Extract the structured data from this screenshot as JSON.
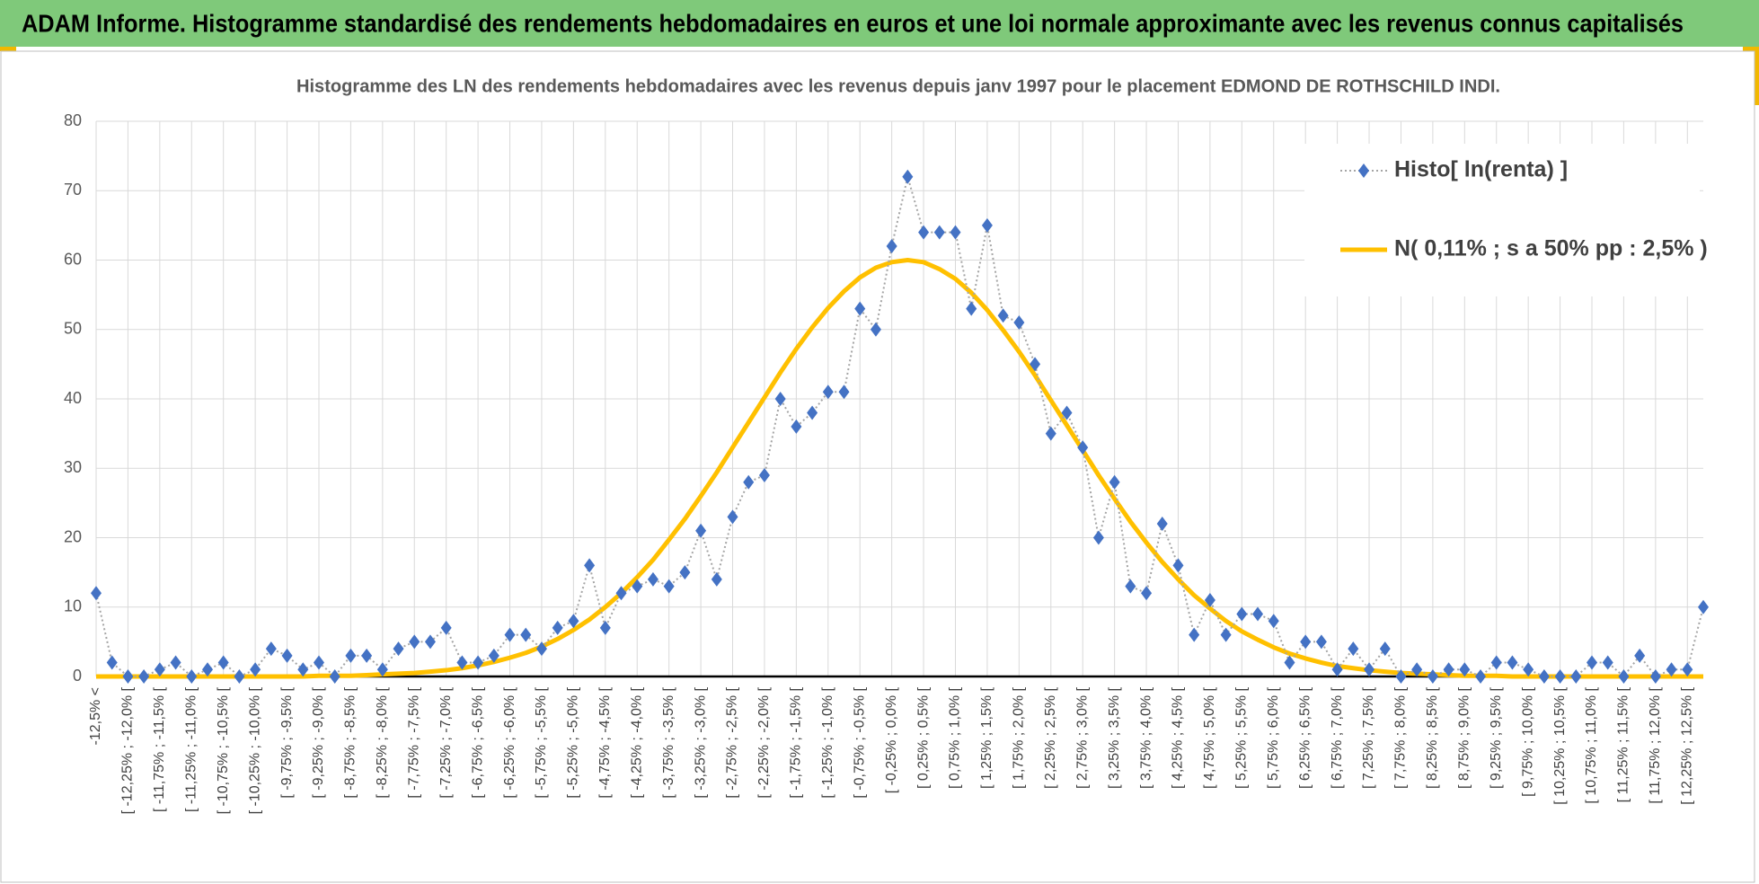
{
  "chart_data": {
    "type": "line",
    "header": "ADAM Informe. Histogramme standardisé des rendements hebdomadaires en euros et une loi normale approximante avec les revenus connus capitalisés",
    "title": "Histogramme des LN des rendements hebdomadaires avec les revenus depuis janv 1997 pour le placement EDMOND DE ROTHSCHILD INDI.",
    "categories": [
      "-12,5% <",
      null,
      "[ -12,25% ; -12,0% [",
      null,
      "[ -11,75% ; -11,5% [",
      null,
      "[ -11,25% ; -11,0% [",
      null,
      "[ -10,75% ; -10,5% [",
      null,
      "[ -10,25% ; -10,0% [",
      null,
      "[ -9,75% ; -9,5% [",
      null,
      "[ -9,25% ; -9,0% [",
      null,
      "[ -8,75% ; -8,5% [",
      null,
      "[ -8,25% ; -8,0% [",
      null,
      "[ -7,75% ; -7,5% [",
      null,
      "[ -7,25% ; -7,0% [",
      null,
      "[ -6,75% ; -6,5% [",
      null,
      "[ -6,25% ; -6,0% [",
      null,
      "[ -5,75% ; -5,5% [",
      null,
      "[ -5,25% ; -5,0% [",
      null,
      "[ -4,75% ; -4,5% [",
      null,
      "[ -4,25% ; -4,0% [",
      null,
      "[ -3,75% ; -3,5% [",
      null,
      "[ -3,25% ; -3,0% [",
      null,
      "[ -2,75% ; -2,5% [",
      null,
      "[ -2,25% ; -2,0% [",
      null,
      "[ -1,75% ; -1,5% [",
      null,
      "[ -1,25% ; -1,0% [",
      null,
      "[ -0,75% ; -0,5% [",
      null,
      "[ -0,25% ; 0,0% [",
      null,
      "[ 0,25% ; 0,5% [",
      null,
      "[ 0,75% ; 1,0% [",
      null,
      "[ 1,25% ; 1,5% [",
      null,
      "[ 1,75% ; 2,0% [",
      null,
      "[ 2,25% ; 2,5% [",
      null,
      "[ 2,75% ; 3,0% [",
      null,
      "[ 3,25% ; 3,5% [",
      null,
      "[ 3,75% ; 4,0% [",
      null,
      "[ 4,25% ; 4,5% [",
      null,
      "[ 4,75% ; 5,0% [",
      null,
      "[ 5,25% ; 5,5% [",
      null,
      "[ 5,75% ; 6,0% [",
      null,
      "[ 6,25% ; 6,5% [",
      null,
      "[ 6,75% ; 7,0% [",
      null,
      "[ 7,25% ; 7,5% [",
      null,
      "[ 7,75% ; 8,0% [",
      null,
      "[ 8,25% ; 8,5% [",
      null,
      "[ 8,75% ; 9,0% [",
      null,
      "[ 9,25% ; 9,5% [",
      null,
      "[ 9,75% ; 10,0% [",
      null,
      "[ 10,25% ; 10,5% [",
      null,
      "[ 10,75% ; 11,0% [",
      null,
      "[ 11,25% ; 11,5% [",
      null,
      "[ 11,75% ; 12,0% [",
      null,
      "[ 12,25% ; 12,5% [",
      null
    ],
    "series": [
      {
        "name": "Histo[ ln(renta) ]",
        "color": "#4472c4",
        "line_color": "#a5a5a5",
        "marker": "diamond",
        "values": [
          12,
          2,
          0,
          0,
          1,
          2,
          0,
          1,
          2,
          0,
          1,
          4,
          3,
          1,
          2,
          0,
          3,
          3,
          1,
          4,
          5,
          5,
          7,
          2,
          2,
          3,
          6,
          6,
          4,
          7,
          8,
          16,
          7,
          12,
          13,
          14,
          13,
          15,
          21,
          14,
          23,
          28,
          29,
          40,
          36,
          38,
          41,
          41,
          53,
          50,
          62,
          72,
          64,
          64,
          64,
          53,
          65,
          52,
          51,
          45,
          35,
          38,
          33,
          20,
          28,
          13,
          12,
          22,
          16,
          6,
          11,
          6,
          9,
          9,
          8,
          2,
          5,
          5,
          1,
          4,
          1,
          4,
          0,
          1,
          0,
          1,
          1,
          0,
          2,
          2,
          1,
          0,
          0,
          0,
          2,
          2,
          0,
          3,
          0,
          1,
          1,
          10
        ]
      },
      {
        "name": "N( 0,11% ; s a 50% pp : 2,5% )",
        "color": "#ffc000",
        "marker": "none",
        "values": [
          0,
          0,
          0,
          0,
          0,
          0,
          0,
          0,
          0,
          0,
          0,
          0,
          0,
          0,
          0.1,
          0.1,
          0.1,
          0.2,
          0.3,
          0.4,
          0.5,
          0.7,
          0.9,
          1.2,
          1.6,
          2.1,
          2.7,
          3.4,
          4.3,
          5.4,
          6.7,
          8.2,
          10.0,
          12.0,
          14.3,
          16.8,
          19.7,
          22.7,
          26.0,
          29.4,
          33.0,
          36.6,
          40.2,
          43.8,
          47.2,
          50.3,
          53.1,
          55.5,
          57.5,
          58.9,
          59.7,
          60.0,
          59.7,
          58.7,
          57.3,
          55.3,
          52.8,
          49.9,
          46.8,
          43.4,
          39.8,
          36.2,
          32.6,
          29.0,
          25.6,
          22.3,
          19.3,
          16.5,
          14.0,
          11.7,
          9.8,
          8.0,
          6.5,
          5.3,
          4.2,
          3.3,
          2.6,
          2.0,
          1.5,
          1.2,
          0.9,
          0.7,
          0.5,
          0.4,
          0.3,
          0.2,
          0.1,
          0.1,
          0.1,
          0,
          0,
          0,
          0,
          0,
          0,
          0,
          0,
          0,
          0,
          0,
          0,
          0
        ]
      }
    ],
    "ylim": [
      0,
      80
    ],
    "yticks": [
      0,
      10,
      20,
      30,
      40,
      50,
      60,
      70,
      80
    ],
    "grid": true,
    "legend": "top-right"
  }
}
